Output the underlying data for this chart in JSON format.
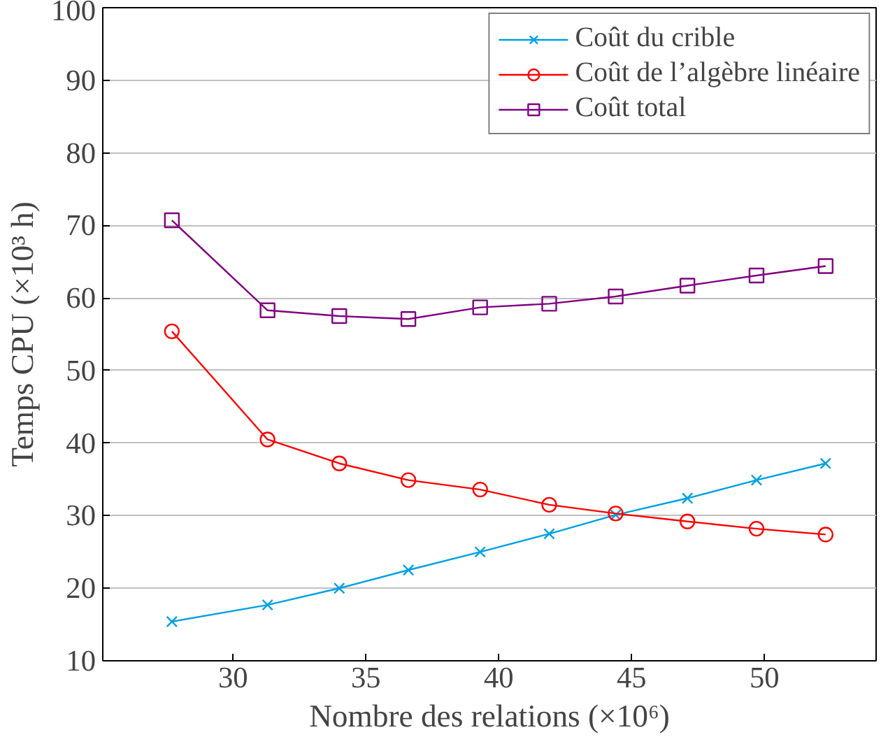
{
  "chart_data": {
    "type": "line",
    "xlabel": "Nombre des relations (×10⁶)",
    "ylabel": "Temps CPU (×10³ h)",
    "x": [
      27.7,
      31.3,
      34.0,
      36.6,
      39.3,
      41.9,
      44.4,
      47.1,
      49.7,
      52.3
    ],
    "xlim": [
      25.1,
      54.2
    ],
    "xticks": [
      30,
      35,
      40,
      45,
      50
    ],
    "ylim": [
      10,
      100
    ],
    "yticks": [
      10,
      20,
      30,
      40,
      50,
      60,
      70,
      80,
      90,
      100
    ],
    "grid": "y",
    "legend": "top right",
    "line_style": "solid",
    "series": [
      {
        "name": "Coût du crible",
        "color": "#00a0e3",
        "marker": "cross",
        "values": [
          15.4,
          17.7,
          20.0,
          22.5,
          25.0,
          27.5,
          30.1,
          32.4,
          34.9,
          37.2
        ]
      },
      {
        "name": "Coût de l’algèbre linéaire",
        "color": "#ff0000",
        "marker": "circle",
        "values": [
          55.4,
          40.5,
          37.2,
          34.9,
          33.6,
          31.5,
          30.3,
          29.2,
          28.2,
          27.4
        ]
      },
      {
        "name": "Coût total",
        "color": "#800080",
        "marker": "square",
        "values": [
          70.7,
          58.3,
          57.5,
          57.1,
          58.7,
          59.2,
          60.2,
          61.7,
          63.1,
          64.4
        ]
      }
    ]
  }
}
